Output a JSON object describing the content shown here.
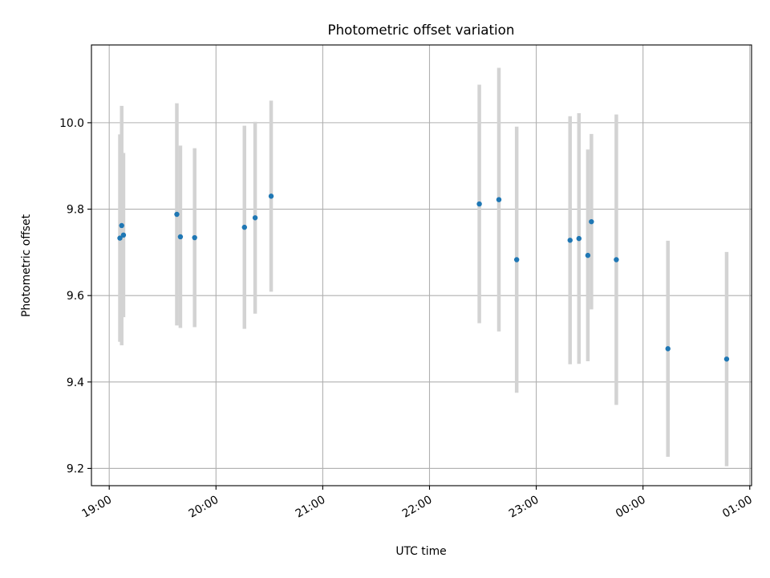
{
  "chart_data": {
    "type": "scatter",
    "title": "Photometric offset variation",
    "xlabel": "UTC time",
    "ylabel": "Photometric offset",
    "x_unit": "UTC time of day (hours; values past 24 fall after midnight)",
    "xlim": [
      "18:50",
      "01:01"
    ],
    "ylim": [
      9.16,
      10.18
    ],
    "x_ticks": [
      "19:00",
      "20:00",
      "21:00",
      "22:00",
      "23:00",
      "00:00",
      "01:00"
    ],
    "y_ticks": [
      "9.2",
      "9.4",
      "9.6",
      "9.8",
      "10.0"
    ],
    "y_tick_values": [
      9.2,
      9.4,
      9.6,
      9.8,
      10.0
    ],
    "grid": true,
    "colors": {
      "point": "#1f77b4",
      "errorbar": "#d3d3d3",
      "grid": "#b0b0b0"
    },
    "points": [
      {
        "time": "19:06",
        "y": 9.733,
        "err": 0.24
      },
      {
        "time": "19:07",
        "y": 9.762,
        "err": 0.277
      },
      {
        "time": "19:08",
        "y": 9.74,
        "err": 0.19
      },
      {
        "time": "19:38",
        "y": 9.788,
        "err": 0.257
      },
      {
        "time": "19:40",
        "y": 9.736,
        "err": 0.211
      },
      {
        "time": "19:48",
        "y": 9.734,
        "err": 0.207
      },
      {
        "time": "20:16",
        "y": 9.758,
        "err": 0.235
      },
      {
        "time": "20:22",
        "y": 9.78,
        "err": 0.222
      },
      {
        "time": "20:31",
        "y": 9.83,
        "err": 0.221
      },
      {
        "time": "22:28",
        "y": 9.812,
        "err": 0.276
      },
      {
        "time": "22:39",
        "y": 9.822,
        "err": 0.305
      },
      {
        "time": "22:49",
        "y": 9.683,
        "err": 0.308
      },
      {
        "time": "23:19",
        "y": 9.728,
        "err": 0.287
      },
      {
        "time": "23:24",
        "y": 9.732,
        "err": 0.29
      },
      {
        "time": "23:29",
        "y": 9.693,
        "err": 0.245
      },
      {
        "time": "23:31",
        "y": 9.771,
        "err": 0.203
      },
      {
        "time": "23:45",
        "y": 9.683,
        "err": 0.336
      },
      {
        "time": "00:14",
        "y": 9.477,
        "err": 0.25
      },
      {
        "time": "00:47",
        "y": 9.453,
        "err": 0.248
      }
    ]
  }
}
